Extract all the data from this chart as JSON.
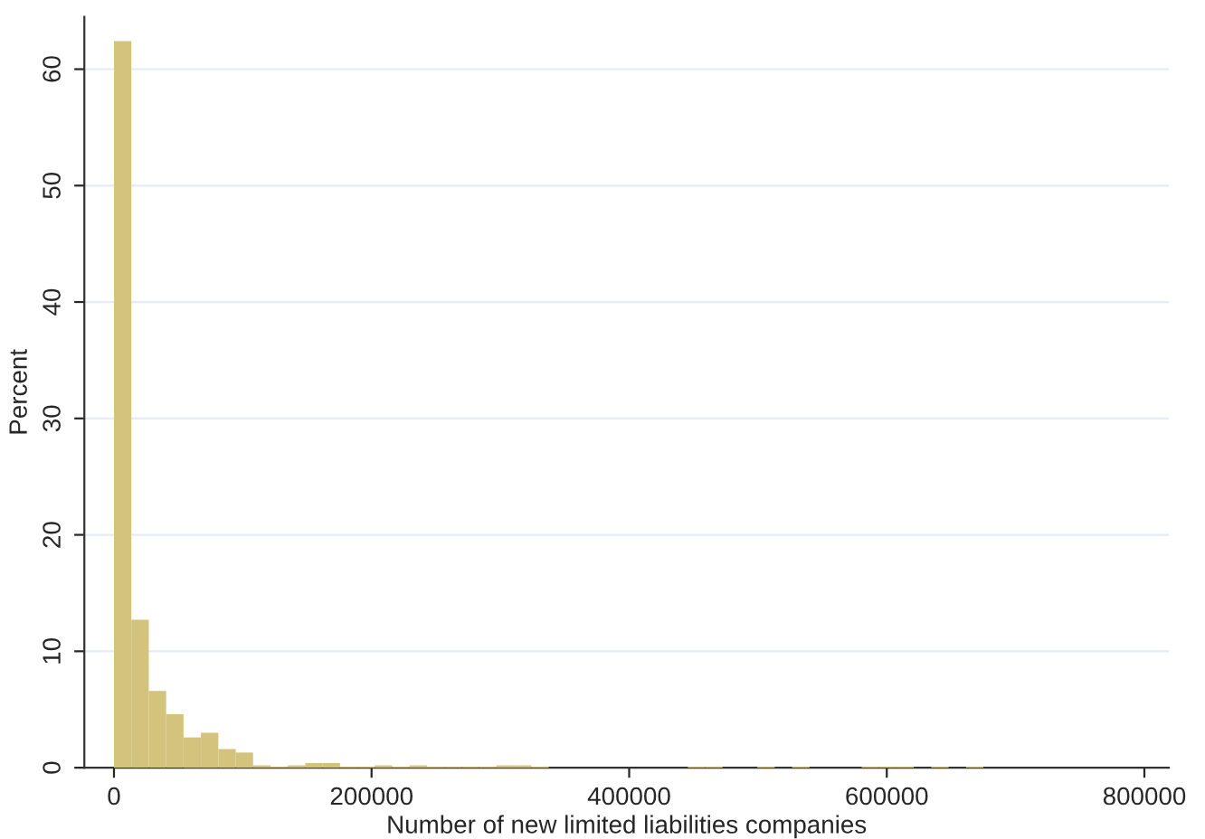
{
  "chart_data": {
    "type": "histogram",
    "xlabel": "Number of new limited liabilities companies",
    "ylabel": "Percent",
    "bins": [
      0,
      13500,
      27000,
      40500,
      54000,
      67500,
      81000,
      94500,
      108000,
      121500,
      135000,
      148500,
      162000,
      175500,
      189000,
      202500,
      216000,
      229500,
      243000,
      256500,
      270000,
      283500,
      297000,
      310500,
      324000,
      337500,
      351000,
      364500,
      378000,
      391500,
      405000,
      418500,
      432000,
      445500,
      459000,
      472500,
      486000,
      499500,
      513000,
      526500,
      540000,
      553500,
      567000,
      580500,
      594000,
      607500,
      621000,
      634500,
      648000,
      661500,
      675000,
      688500,
      702000,
      715500,
      729000,
      742500,
      756000,
      769500,
      783000,
      796500
    ],
    "values": [
      62.4,
      12.7,
      6.6,
      4.6,
      2.6,
      3.0,
      1.6,
      1.3,
      0.2,
      0.1,
      0.2,
      0.4,
      0.4,
      0.1,
      0.1,
      0.2,
      0.1,
      0.2,
      0.1,
      0.1,
      0.1,
      0.1,
      0.2,
      0.2,
      0.1,
      0,
      0,
      0,
      0,
      0,
      0,
      0,
      0,
      0.1,
      0.1,
      0,
      0,
      0.1,
      0,
      0.1,
      0,
      0,
      0,
      0.1,
      0.1,
      0.1,
      0,
      0.1,
      0,
      0.1,
      0,
      0,
      0,
      0,
      0,
      0,
      0,
      0,
      0
    ],
    "color": "#d4c37c",
    "xlim": [
      -23000,
      819000
    ],
    "ylim": [
      0,
      64.5
    ],
    "xticks": [
      0,
      200000,
      400000,
      600000,
      800000
    ],
    "yticks": [
      0,
      10,
      20,
      30,
      40,
      50,
      60
    ],
    "grid": "y"
  }
}
